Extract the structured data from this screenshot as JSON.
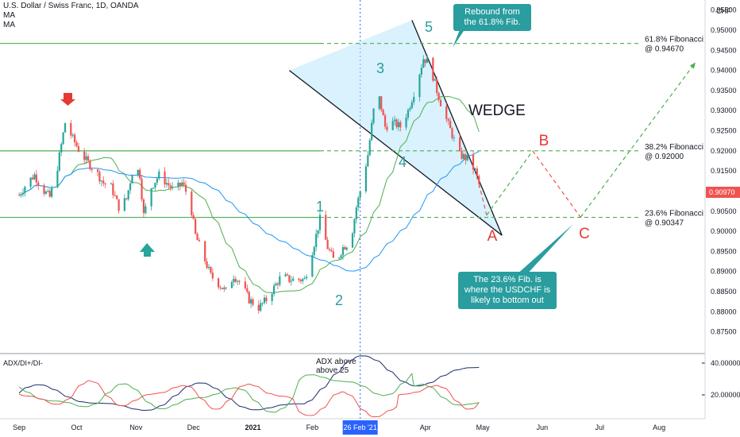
{
  "header": {
    "symbol": "U.S. Dollar / Swiss Franc, 1D, OANDA",
    "ind1": "MA",
    "ind2": "MA"
  },
  "price_axis_unit": "CHF",
  "current_price": "0.90970",
  "date_badge": "26 Feb '21",
  "colors": {
    "up": "#26a69a",
    "down": "#ef5350",
    "wedge_fill": "#b3e5fc",
    "ma_fast": "#4caf50",
    "ma_slow": "#2196f3",
    "fib_line": "#4caf50",
    "projection": "#4caf50",
    "projection_down": "#ef5350",
    "wave_blue": "#2a9d9f",
    "wave_red": "#e53935",
    "price_tag": "#ef5350",
    "adx": "#1a2d6e",
    "plus_di": "#4caf50",
    "minus_di": "#ef5350"
  },
  "annotations": {
    "rebound": "Rebound from the 61.8% Fib.",
    "wedge": "WEDGE",
    "bottom_note": "The 23.6% Fib. is where the USDCHF is likely to bottom out",
    "adx_note": "ADX above above 25",
    "fib_618": "61.8% Fibonacci @ 0.94670",
    "fib_382": "38.2% Fibonacci @ 0.92000",
    "fib_236": "23.6% Fibonacci @ 0.90347",
    "waves": [
      "1",
      "2",
      "3",
      "4",
      "5"
    ],
    "abc": [
      "A",
      "B",
      "C"
    ]
  },
  "adx_panel": {
    "title": "ADX/DI+/DI-",
    "ticks": [
      "40.00000",
      "20.00000"
    ]
  },
  "chart_data": [
    {
      "type": "candlestick",
      "title": "U.S. Dollar / Swiss Franc, 1D, OANDA",
      "ylim": [
        0.87,
        0.9575
      ],
      "y_ticks": [
        "0.95500",
        "0.95000",
        "0.94500",
        "0.94000",
        "0.93500",
        "0.93000",
        "0.92500",
        "0.92000",
        "0.91500",
        "0.91000",
        "0.90500",
        "0.90000",
        "0.89500",
        "0.89000",
        "0.88500",
        "0.88000",
        "0.87500"
      ],
      "x_labels": [
        "Sep",
        "Oct",
        "Nov",
        "Dec",
        "2021",
        "Feb",
        "Mar",
        "Apr",
        "May",
        "Jun",
        "Jul",
        "Aug"
      ],
      "close_path": [
        [
          "2020-09-01",
          0.909
        ],
        [
          "2020-09-05",
          0.912
        ],
        [
          "2020-09-09",
          0.914
        ],
        [
          "2020-09-13",
          0.9105
        ],
        [
          "2020-09-17",
          0.9085
        ],
        [
          "2020-09-21",
          0.916
        ],
        [
          "2020-09-25",
          0.927
        ],
        [
          "2020-09-29",
          0.923
        ],
        [
          "2020-10-03",
          0.9195
        ],
        [
          "2020-10-07",
          0.917
        ],
        [
          "2020-10-11",
          0.915
        ],
        [
          "2020-10-15",
          0.912
        ],
        [
          "2020-10-19",
          0.911
        ],
        [
          "2020-10-23",
          0.906
        ],
        [
          "2020-10-27",
          0.908
        ],
        [
          "2020-10-31",
          0.917
        ],
        [
          "2020-11-03",
          0.914
        ],
        [
          "2020-11-05",
          0.904
        ],
        [
          "2020-11-09",
          0.911
        ],
        [
          "2020-11-13",
          0.914
        ],
        [
          "2020-11-17",
          0.912
        ],
        [
          "2020-11-21",
          0.91
        ],
        [
          "2020-11-25",
          0.912
        ],
        [
          "2020-11-29",
          0.908
        ],
        [
          "2020-12-02",
          0.899
        ],
        [
          "2020-12-06",
          0.894
        ],
        [
          "2020-12-10",
          0.889
        ],
        [
          "2020-12-14",
          0.887
        ],
        [
          "2020-12-18",
          0.885
        ],
        [
          "2020-12-22",
          0.889
        ],
        [
          "2020-12-26",
          0.887
        ],
        [
          "2020-12-30",
          0.883
        ],
        [
          "2021-01-04",
          0.881
        ],
        [
          "2021-01-08",
          0.883
        ],
        [
          "2021-01-12",
          0.886
        ],
        [
          "2021-01-16",
          0.889
        ],
        [
          "2021-01-20",
          0.888
        ],
        [
          "2021-01-24",
          0.888
        ],
        [
          "2021-01-28",
          0.888
        ],
        [
          "2021-02-02",
          0.897
        ],
        [
          "2021-02-05",
          0.903
        ],
        [
          "2021-02-09",
          0.896
        ],
        [
          "2021-02-13",
          0.892
        ],
        [
          "2021-02-17",
          0.896
        ],
        [
          "2021-02-21",
          0.8975
        ],
        [
          "2021-02-24",
          0.906
        ],
        [
          "2021-02-27",
          0.912
        ],
        [
          "2021-03-02",
          0.919
        ],
        [
          "2021-03-05",
          0.93
        ],
        [
          "2021-03-08",
          0.933
        ],
        [
          "2021-03-11",
          0.926
        ],
        [
          "2021-03-15",
          0.927
        ],
        [
          "2021-03-19",
          0.926
        ],
        [
          "2021-03-23",
          0.93
        ],
        [
          "2021-03-27",
          0.936
        ],
        [
          "2021-03-31",
          0.943
        ],
        [
          "2021-04-03",
          0.942
        ],
        [
          "2021-04-07",
          0.935
        ],
        [
          "2021-04-11",
          0.929
        ],
        [
          "2021-04-15",
          0.924
        ],
        [
          "2021-04-19",
          0.919
        ],
        [
          "2021-04-23",
          0.918
        ],
        [
          "2021-04-27",
          0.915
        ],
        [
          "2021-04-30",
          0.91
        ]
      ],
      "series": [
        {
          "name": "MA"
        },
        {
          "name": "MA"
        }
      ],
      "fibonacci": [
        {
          "label": "61.8% Fibonacci @ 0.94670",
          "value": 0.9467
        },
        {
          "label": "38.2% Fibonacci @ 0.92000",
          "value": 0.92
        },
        {
          "label": "23.6% Fibonacci @ 0.90347",
          "value": 0.90347
        }
      ],
      "projection": [
        {
          "point": "A",
          "date": "2021-05-03",
          "value": 0.904
        },
        {
          "point": "B",
          "date": "2021-05-27",
          "value": 0.92
        },
        {
          "point": "C",
          "date": "2021-06-21",
          "value": 0.9035
        },
        {
          "point": "",
          "date": "2021-08-20",
          "value": 0.942
        }
      ],
      "wedge_upper": [
        [
          "2021-03-25",
          0.9525
        ],
        [
          "2021-05-11",
          0.899
        ]
      ],
      "wedge_lower": [
        [
          "2021-01-20",
          0.94
        ],
        [
          "2021-05-11",
          0.899
        ]
      ]
    },
    {
      "type": "line",
      "title": "ADX/DI+/DI-",
      "ylim": [
        5,
        45
      ],
      "y_ticks": [
        "40.00000",
        "20.00000"
      ],
      "series": [
        {
          "name": "ADX"
        },
        {
          "name": "DI+"
        },
        {
          "name": "DI-"
        }
      ]
    }
  ]
}
